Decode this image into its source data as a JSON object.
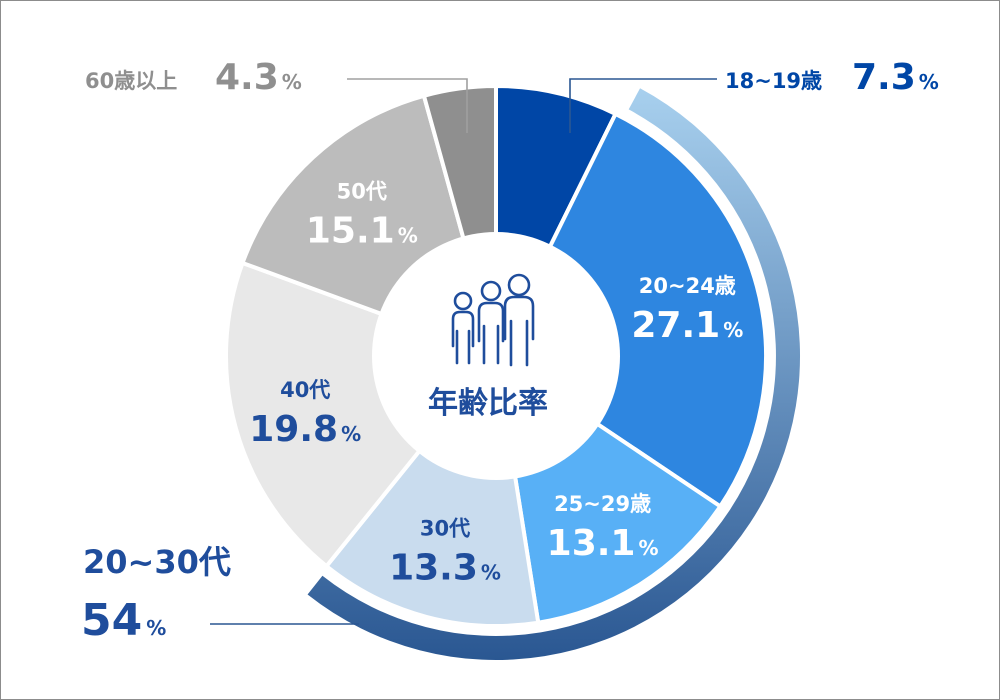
{
  "chart_data": {
    "type": "pie",
    "title": "年齢比率",
    "percent_sign": "%",
    "slices": [
      {
        "label": "18~19歳",
        "value": 7.3,
        "value_text": "7.3",
        "color": "#0046a6",
        "text_color": "#0046a6"
      },
      {
        "label": "20~24歳",
        "value": 27.1,
        "value_text": "27.1",
        "color": "#2e86e0",
        "text_color": "#ffffff"
      },
      {
        "label": "25~29歳",
        "value": 13.1,
        "value_text": "13.1",
        "color": "#58b0f6",
        "text_color": "#ffffff"
      },
      {
        "label": "30代",
        "value": 13.3,
        "value_text": "13.3",
        "color": "#c9dcee",
        "text_color": "#1f4d9c"
      },
      {
        "label": "40代",
        "value": 19.8,
        "value_text": "19.8",
        "color": "#e8e8e8",
        "text_color": "#1f4d9c"
      },
      {
        "label": "50代",
        "value": 15.1,
        "value_text": "15.1",
        "color": "#bcbcbc",
        "text_color": "#ffffff"
      },
      {
        "label": "60歳以上",
        "value": 4.3,
        "value_text": "4.3",
        "color": "#8f8f8f",
        "text_color": "#8f8f8f"
      }
    ],
    "highlight": {
      "label": "20~30代",
      "value": 54,
      "value_text": "54",
      "text_color": "#1f4d9c",
      "arc_color_start": "#a8d0ee",
      "arc_color_end": "#2a5792"
    },
    "center_icon": "people-group-icon"
  }
}
